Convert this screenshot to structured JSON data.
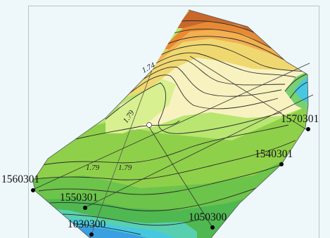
{
  "contour_labels": {
    "a": "1.74",
    "b": "1.79",
    "c": "1.79",
    "d": "1.79"
  },
  "wells": [
    {
      "id": "well-1570301",
      "label": "1570301"
    },
    {
      "id": "well-1540301",
      "label": "1540301"
    },
    {
      "id": "well-1560301",
      "label": "1560301"
    },
    {
      "id": "well-1550301",
      "label": "1550301"
    },
    {
      "id": "well-1030300",
      "label": "1030300"
    },
    {
      "id": "well-1050300",
      "label": "1050300"
    }
  ],
  "colors": {
    "background": "#eef8fb",
    "contour_line": "#2a2a2a",
    "dark_brown": "#a0522d",
    "orange": "#e07a2c",
    "yellow": "#f0d870",
    "pale_yellow": "#f8f2c0",
    "light_green": "#c8ec78",
    "green": "#8fd04a",
    "deep_green": "#5cb845",
    "cyan": "#48c8e0",
    "blue": "#3aa0e0"
  }
}
